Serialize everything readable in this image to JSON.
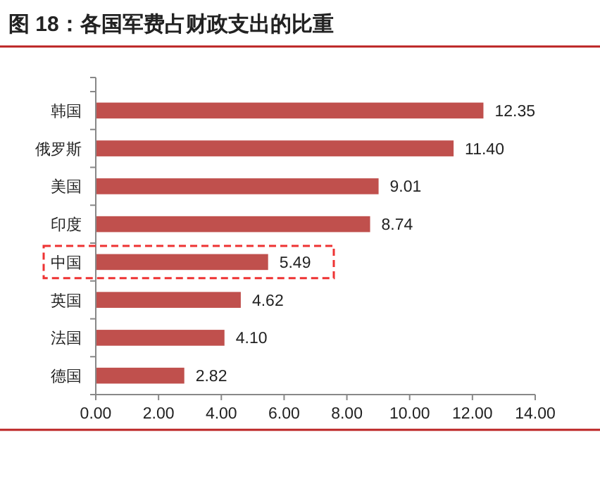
{
  "chart_data": {
    "type": "bar",
    "orientation": "horizontal",
    "title": "图 18：各国军费占财政支出的比重",
    "categories": [
      "韩国",
      "俄罗斯",
      "美国",
      "印度",
      "中国",
      "英国",
      "法国",
      "德国"
    ],
    "values": [
      12.35,
      11.4,
      9.01,
      8.74,
      5.49,
      4.62,
      4.1,
      2.82
    ],
    "value_labels": [
      "12.35",
      "11.40",
      "9.01",
      "8.74",
      "5.49",
      "4.62",
      "4.10",
      "2.82"
    ],
    "color": "#c0504d",
    "xlim": [
      0,
      14
    ],
    "xticks": [
      {
        "value": 0,
        "label": "0.00"
      },
      {
        "value": 2,
        "label": "2.00"
      },
      {
        "value": 4,
        "label": "4.00"
      },
      {
        "value": 6,
        "label": "6.00"
      },
      {
        "value": 8,
        "label": "8.00"
      },
      {
        "value": 10,
        "label": "10.00"
      },
      {
        "value": 12,
        "label": "12.00"
      },
      {
        "value": 14,
        "label": "14.00"
      }
    ]
  }
}
